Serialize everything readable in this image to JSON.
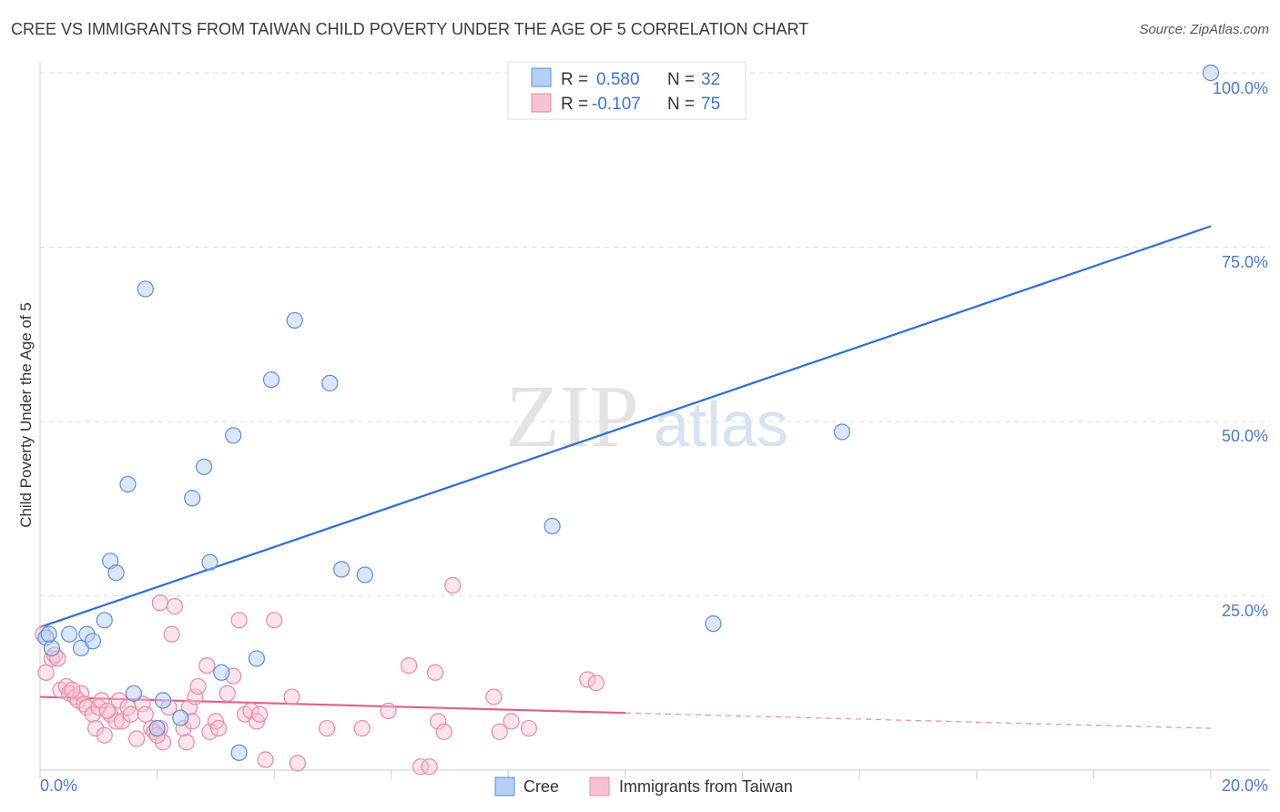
{
  "title": "CREE VS IMMIGRANTS FROM TAIWAN CHILD POVERTY UNDER THE AGE OF 5 CORRELATION CHART",
  "source": "Source: ZipAtlas.com",
  "watermark": {
    "zip": "ZIP",
    "atlas": "atlas"
  },
  "colors": {
    "cree_fill": "#b7d0f1",
    "cree_stroke": "#5b8fd6",
    "cree_line": "#2f6fd0",
    "taiwan_fill": "#f7c3d3",
    "taiwan_stroke": "#e88aa8",
    "taiwan_line": "#e0608e",
    "grid": "#dddddd",
    "tick_text": "#4a7cc7"
  },
  "legend": {
    "rows": [
      {
        "r_label": "R =",
        "r_value": "0.580",
        "n_label": "N =",
        "n_value": "32"
      },
      {
        "r_label": "R =",
        "r_value": "-0.107",
        "n_label": "N =",
        "n_value": "75"
      }
    ]
  },
  "chart_data": {
    "type": "scatter",
    "title": "CREE VS IMMIGRANTS FROM TAIWAN CHILD POVERTY UNDER THE AGE OF 5 CORRELATION CHART",
    "xlabel": "",
    "ylabel": "Child Poverty Under the Age of 5",
    "xlim": [
      0,
      20
    ],
    "ylim": [
      0,
      100
    ],
    "x_tick_labels": [
      "0.0%",
      "20.0%"
    ],
    "y_ticks": [
      25,
      50,
      75,
      100
    ],
    "y_tick_labels": [
      "25.0%",
      "50.0%",
      "75.0%",
      "100.0%"
    ],
    "series": [
      {
        "name": "Cree",
        "points": [
          [
            0.1,
            19.0
          ],
          [
            0.2,
            17.5
          ],
          [
            0.5,
            19.5
          ],
          [
            0.7,
            17.5
          ],
          [
            0.8,
            19.5
          ],
          [
            0.9,
            18.5
          ],
          [
            1.1,
            21.5
          ],
          [
            1.2,
            30.0
          ],
          [
            1.3,
            28.3
          ],
          [
            1.5,
            41.0
          ],
          [
            1.6,
            11.0
          ],
          [
            1.8,
            69.0
          ],
          [
            2.0,
            6.0
          ],
          [
            2.1,
            10.0
          ],
          [
            2.4,
            7.5
          ],
          [
            2.6,
            39.0
          ],
          [
            2.8,
            43.5
          ],
          [
            2.9,
            29.8
          ],
          [
            3.1,
            14.0
          ],
          [
            3.3,
            48.0
          ],
          [
            3.4,
            2.5
          ],
          [
            3.7,
            16.0
          ],
          [
            3.95,
            56.0
          ],
          [
            4.35,
            64.5
          ],
          [
            4.95,
            55.5
          ],
          [
            5.15,
            28.8
          ],
          [
            5.55,
            28.0
          ],
          [
            8.75,
            35.0
          ],
          [
            11.5,
            21.0
          ],
          [
            13.7,
            48.5
          ],
          [
            20.0,
            100.0
          ],
          [
            0.15,
            19.5
          ]
        ],
        "trend": {
          "x": [
            0.0,
            20.0
          ],
          "y": [
            20.5,
            78.0
          ]
        }
      },
      {
        "name": "Immigrants from Taiwan",
        "points": [
          [
            0.05,
            19.5
          ],
          [
            0.1,
            14.0
          ],
          [
            0.2,
            16.0
          ],
          [
            0.25,
            16.5
          ],
          [
            0.35,
            11.5
          ],
          [
            0.45,
            12.0
          ],
          [
            0.5,
            11.0
          ],
          [
            0.6,
            10.5
          ],
          [
            0.65,
            10.0
          ],
          [
            0.7,
            11.0
          ],
          [
            0.75,
            9.5
          ],
          [
            0.8,
            9.0
          ],
          [
            0.9,
            8.0
          ],
          [
            0.95,
            6.0
          ],
          [
            1.0,
            9.0
          ],
          [
            1.05,
            10.0
          ],
          [
            1.1,
            5.0
          ],
          [
            1.2,
            8.0
          ],
          [
            1.3,
            7.0
          ],
          [
            1.35,
            10.0
          ],
          [
            1.4,
            7.0
          ],
          [
            1.5,
            9.0
          ],
          [
            1.55,
            8.0
          ],
          [
            1.65,
            4.5
          ],
          [
            1.75,
            9.5
          ],
          [
            1.8,
            8.0
          ],
          [
            1.9,
            6.0
          ],
          [
            1.95,
            5.5
          ],
          [
            2.05,
            6.0
          ],
          [
            2.05,
            24.0
          ],
          [
            2.1,
            4.0
          ],
          [
            2.2,
            9.0
          ],
          [
            2.25,
            19.5
          ],
          [
            2.3,
            23.5
          ],
          [
            2.45,
            6.0
          ],
          [
            2.5,
            4.0
          ],
          [
            2.55,
            9.0
          ],
          [
            2.6,
            7.0
          ],
          [
            2.65,
            10.5
          ],
          [
            2.7,
            12.0
          ],
          [
            2.85,
            15.0
          ],
          [
            2.9,
            5.5
          ],
          [
            3.0,
            7.0
          ],
          [
            3.05,
            6.0
          ],
          [
            3.2,
            11.0
          ],
          [
            3.3,
            13.5
          ],
          [
            3.4,
            21.5
          ],
          [
            3.5,
            8.0
          ],
          [
            3.6,
            8.5
          ],
          [
            3.7,
            7.0
          ],
          [
            3.85,
            1.5
          ],
          [
            4.0,
            21.5
          ],
          [
            4.3,
            10.5
          ],
          [
            4.4,
            1.0
          ],
          [
            4.9,
            6.0
          ],
          [
            5.5,
            6.0
          ],
          [
            5.95,
            8.5
          ],
          [
            6.3,
            15.0
          ],
          [
            6.5,
            0.5
          ],
          [
            6.65,
            0.5
          ],
          [
            6.75,
            14.0
          ],
          [
            6.8,
            7.0
          ],
          [
            6.9,
            5.5
          ],
          [
            7.05,
            26.5
          ],
          [
            7.75,
            10.5
          ],
          [
            7.85,
            5.5
          ],
          [
            8.05,
            7.0
          ],
          [
            8.35,
            6.0
          ],
          [
            9.35,
            13.0
          ],
          [
            9.5,
            12.5
          ],
          [
            0.3,
            16.0
          ],
          [
            0.55,
            11.5
          ],
          [
            1.15,
            8.5
          ],
          [
            2.0,
            5.0
          ],
          [
            3.75,
            8.0
          ]
        ],
        "trend": {
          "x": [
            0.0,
            10.0
          ],
          "y": [
            10.5,
            8.2
          ]
        },
        "trend_dashed": {
          "x": [
            10.0,
            20.0
          ],
          "y": [
            8.2,
            6.0
          ]
        }
      }
    ]
  },
  "bottom_legend": {
    "items": [
      {
        "label": "Cree"
      },
      {
        "label": "Immigrants from Taiwan"
      }
    ]
  }
}
